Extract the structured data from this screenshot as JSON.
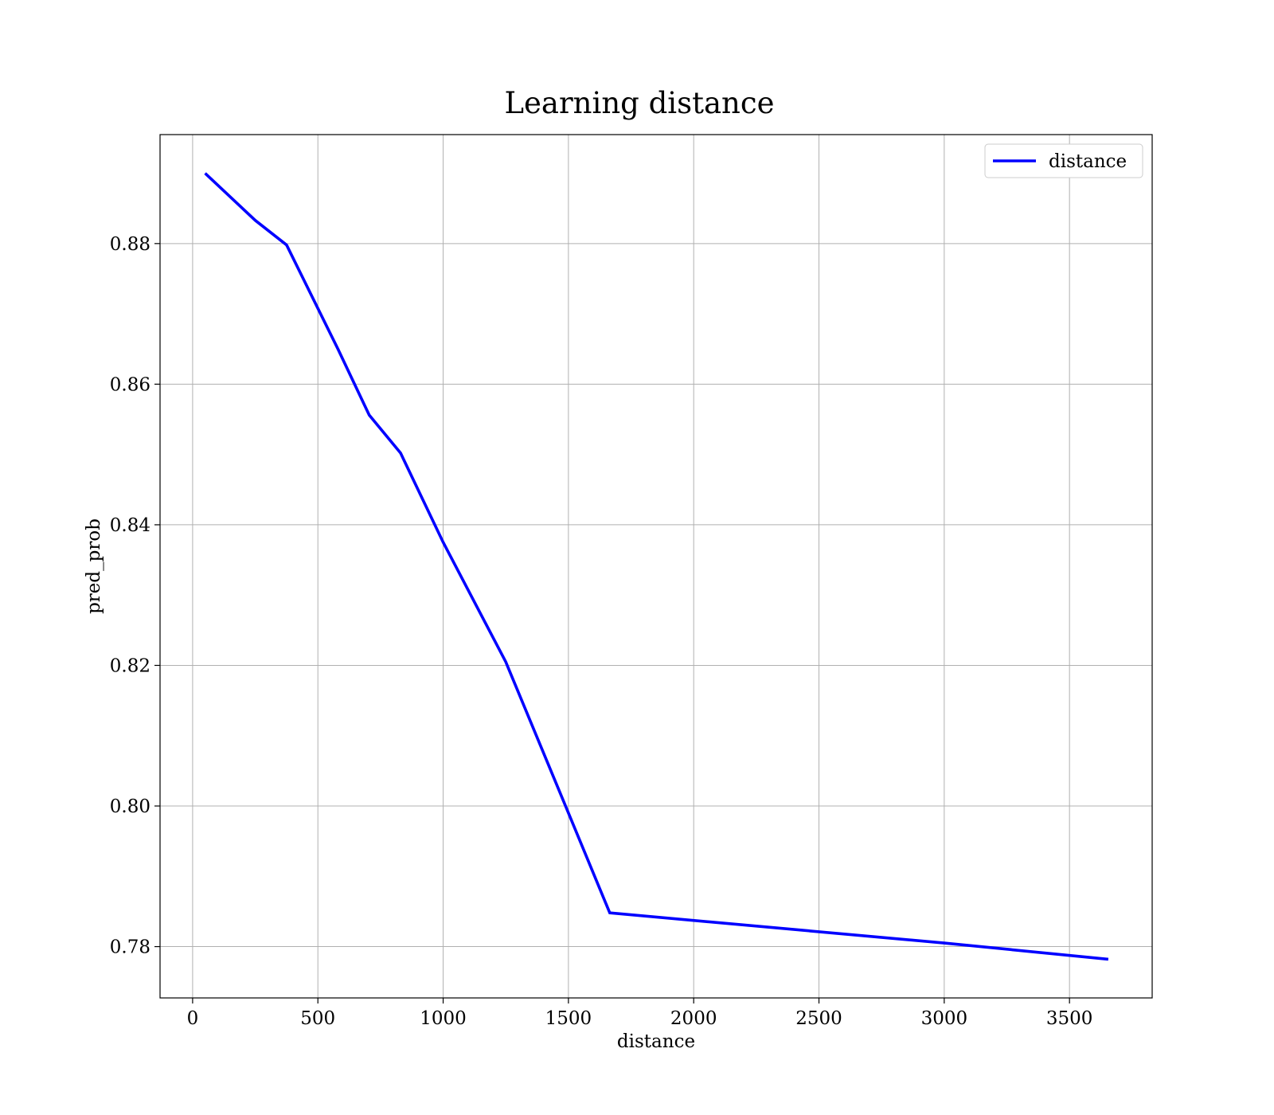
{
  "chart_data": {
    "type": "line",
    "title": "Learning distance",
    "xlabel": "distance",
    "ylabel": "pred_prob",
    "xlim": [
      -130,
      3830
    ],
    "ylim": [
      0.7727,
      0.8955
    ],
    "xticks": [
      0,
      500,
      1000,
      1500,
      2000,
      2500,
      3000,
      3500
    ],
    "yticks": [
      0.78,
      0.8,
      0.82,
      0.84,
      0.86,
      0.88
    ],
    "xtick_labels": [
      "0",
      "500",
      "1000",
      "1500",
      "2000",
      "2500",
      "3000",
      "3500"
    ],
    "ytick_labels": [
      "0.78",
      "0.80",
      "0.82",
      "0.84",
      "0.86",
      "0.88"
    ],
    "grid": true,
    "legend_position": "top-right",
    "series": [
      {
        "name": "distance",
        "color": "#0000ff",
        "x": [
          50,
          250,
          375,
          580,
          705,
          830,
          1000,
          1250,
          1500,
          1665,
          3000,
          3655
        ],
        "y": [
          0.89,
          0.8833,
          0.8798,
          0.865,
          0.8556,
          0.8502,
          0.8375,
          0.8205,
          0.799,
          0.7848,
          0.7805,
          0.7782
        ]
      }
    ]
  }
}
